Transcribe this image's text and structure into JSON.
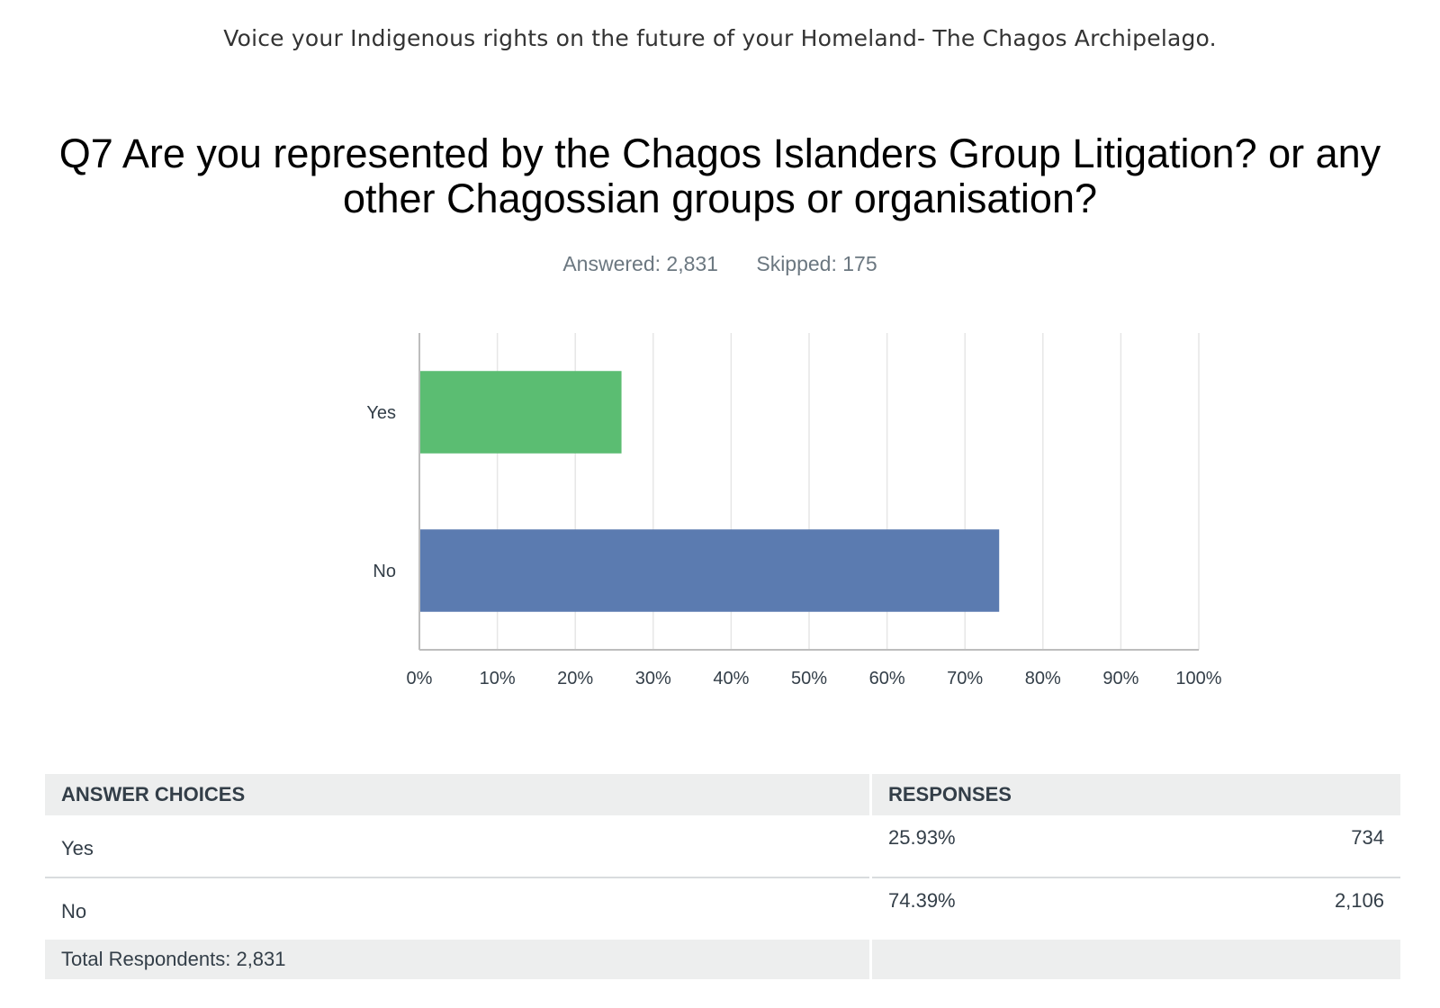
{
  "survey_title": "Voice your Indigenous rights on the future of your Homeland- The Chagos Archipelago.",
  "question": "Q7 Are you represented by the Chagos Islanders Group Litigation? or any other Chagossian groups or organisation?",
  "stats": {
    "answered": "Answered: 2,831",
    "skipped": "Skipped: 175"
  },
  "chart_data": {
    "type": "bar",
    "orientation": "horizontal",
    "categories": [
      "Yes",
      "No"
    ],
    "values": [
      25.93,
      74.39
    ],
    "colors": [
      "#5bbd72",
      "#5b7bb0"
    ],
    "xlim": [
      0,
      100
    ],
    "xticks": [
      "0%",
      "10%",
      "20%",
      "30%",
      "40%",
      "50%",
      "60%",
      "70%",
      "80%",
      "90%",
      "100%"
    ],
    "grid": true
  },
  "table": {
    "headers": {
      "choices": "ANSWER CHOICES",
      "responses": "RESPONSES"
    },
    "rows": [
      {
        "choice": "Yes",
        "percent": "25.93%",
        "count": "734"
      },
      {
        "choice": "No",
        "percent": "74.39%",
        "count": "2,106"
      }
    ],
    "total": "Total Respondents: 2,831"
  }
}
